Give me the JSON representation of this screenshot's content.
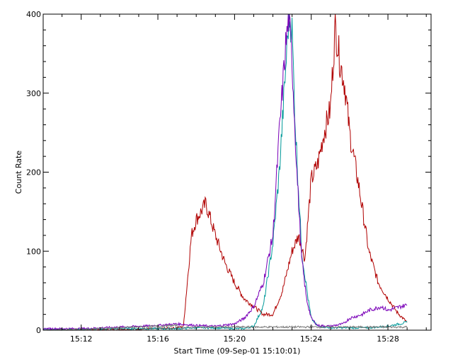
{
  "chart_data": {
    "type": "line",
    "title": "",
    "xlabel": "Start Time (09-Sep-01 15:10:01)",
    "ylabel": "Count Rate",
    "x_unit": "time (HH:MM, 09-Sep-01)",
    "xlim": [
      "15:10:01",
      "15:30:15"
    ],
    "ylim": [
      0,
      400
    ],
    "x_ticks": [
      "15:12",
      "15:16",
      "15:20",
      "15:24",
      "15:28"
    ],
    "y_ticks": [
      0,
      100,
      200,
      300,
      400
    ],
    "grid": false,
    "legend": "none",
    "series": [
      {
        "color": "#b00000",
        "x": [
          "15:10:01",
          "15:12:00",
          "15:14:00",
          "15:16:00",
          "15:17:00",
          "15:17:20",
          "15:17:45",
          "15:18:00",
          "15:18:30",
          "15:19:00",
          "15:19:30",
          "15:20:00",
          "15:20:30",
          "15:21:00",
          "15:21:30",
          "15:22:00",
          "15:22:30",
          "15:23:00",
          "15:23:20",
          "15:23:40",
          "15:24:00",
          "15:24:20",
          "15:24:40",
          "15:25:00",
          "15:25:15",
          "15:25:30",
          "15:25:45",
          "15:26:00",
          "15:26:30",
          "15:27:00",
          "15:27:30",
          "15:28:00",
          "15:28:30",
          "15:29:00"
        ],
        "values": [
          0,
          0,
          1,
          2,
          3,
          5,
          120,
          140,
          160,
          120,
          85,
          60,
          40,
          30,
          20,
          20,
          50,
          100,
          120,
          90,
          190,
          210,
          250,
          280,
          385,
          340,
          310,
          250,
          180,
          100,
          60,
          40,
          22,
          10
        ]
      },
      {
        "color": "#009999",
        "x": [
          "15:10:01",
          "15:12:00",
          "15:14:00",
          "15:16:00",
          "15:17:00",
          "15:18:00",
          "15:19:00",
          "15:20:00",
          "15:20:30",
          "15:21:00",
          "15:21:30",
          "15:22:00",
          "15:22:20",
          "15:22:40",
          "15:22:50",
          "15:23:00",
          "15:23:10",
          "15:23:30",
          "15:23:50",
          "15:24:00",
          "15:24:20",
          "15:25:00",
          "15:26:00",
          "15:27:00",
          "15:28:00",
          "15:29:00"
        ],
        "values": [
          1,
          1,
          2,
          2,
          2,
          3,
          3,
          2,
          2,
          5,
          30,
          110,
          200,
          330,
          400,
          380,
          260,
          100,
          40,
          15,
          5,
          3,
          3,
          3,
          5,
          10
        ]
      },
      {
        "color": "#7a00b8",
        "x": [
          "15:10:01",
          "15:12:00",
          "15:14:00",
          "15:16:00",
          "15:17:00",
          "15:18:00",
          "15:19:00",
          "15:20:00",
          "15:20:30",
          "15:21:00",
          "15:21:30",
          "15:22:00",
          "15:22:20",
          "15:22:40",
          "15:22:50",
          "15:23:00",
          "15:23:15",
          "15:23:30",
          "15:23:45",
          "15:24:00",
          "15:24:20",
          "15:25:00",
          "15:25:40",
          "15:26:00",
          "15:26:40",
          "15:27:00",
          "15:27:40",
          "15:28:00",
          "15:28:40",
          "15:29:00"
        ],
        "values": [
          2,
          2,
          4,
          6,
          8,
          6,
          5,
          8,
          15,
          30,
          60,
          120,
          250,
          360,
          395,
          340,
          200,
          90,
          40,
          15,
          6,
          5,
          8,
          15,
          20,
          25,
          30,
          25,
          30,
          32
        ]
      },
      {
        "color": "#777777",
        "x": [
          "15:10:01",
          "15:12:00",
          "15:14:00",
          "15:16:00",
          "15:17:00",
          "15:17:10",
          "15:18:00",
          "15:20:00",
          "15:22:00",
          "15:24:00",
          "15:26:00",
          "15:28:00",
          "15:29:00"
        ],
        "values": [
          0,
          1,
          3,
          5,
          6,
          3,
          4,
          4,
          4,
          4,
          4,
          4,
          4
        ]
      }
    ]
  }
}
